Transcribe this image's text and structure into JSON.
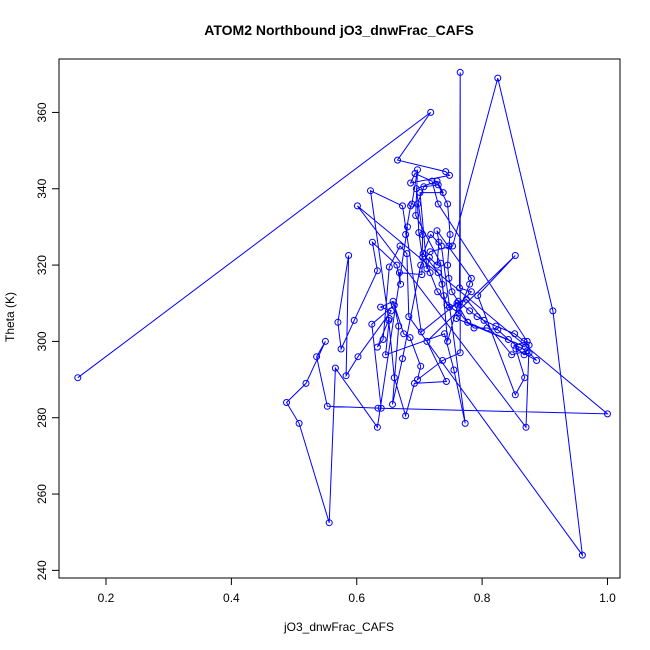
{
  "chart_data": {
    "type": "line",
    "title": "ATOM2 Northbound jO3_dnwFrac_CAFS",
    "xlabel": "jO3_dnwFrac_CAFS",
    "ylabel": "Theta (K)",
    "xlim": [
      0.125,
      1.02
    ],
    "ylim": [
      238,
      374
    ],
    "xticks": [
      0.2,
      0.4,
      0.6,
      0.8,
      1.0
    ],
    "xtick_labels": [
      "0.2",
      "0.4",
      "0.6",
      "0.8",
      "1.0"
    ],
    "yticks": [
      240,
      260,
      280,
      300,
      320,
      340,
      360
    ],
    "ytick_labels": [
      "240",
      "260",
      "280",
      "300",
      "320",
      "340",
      "360"
    ],
    "grid": false,
    "legend": "none",
    "colors": {
      "series": "#0000ff",
      "frame": "#000000"
    },
    "series": [
      {
        "marker": "open-circle",
        "points": [
          [
            0.155,
            290.5
          ],
          [
            0.718,
            360.0
          ],
          [
            0.665,
            347.5
          ],
          [
            0.742,
            344.5
          ],
          [
            0.748,
            343.5
          ],
          [
            0.686,
            341.5
          ],
          [
            0.693,
            344.0
          ],
          [
            0.72,
            342.0
          ],
          [
            0.73,
            336.0
          ],
          [
            0.872,
            300.0
          ],
          [
            0.851,
            299.0
          ],
          [
            0.867,
            296.5
          ],
          [
            0.875,
            297.0
          ],
          [
            0.887,
            295.0
          ],
          [
            0.854,
            298.0
          ],
          [
            0.868,
            290.5
          ],
          [
            0.853,
            286.0
          ],
          [
            0.793,
            312.0
          ],
          [
            0.853,
            322.5
          ],
          [
            0.712,
            300.0
          ],
          [
            0.743,
            289.5
          ],
          [
            0.692,
            289.0
          ],
          [
            0.678,
            280.5
          ],
          [
            0.66,
            290.5
          ],
          [
            0.651,
            305.5
          ],
          [
            0.622,
            339.5
          ],
          [
            0.673,
            335.5
          ],
          [
            0.703,
            302.5
          ],
          [
            0.76,
            310.0
          ],
          [
            0.777,
            305.0
          ],
          [
            0.869,
            298.5
          ],
          [
            0.759,
            306.0
          ],
          [
            0.78,
            315.0
          ],
          [
            0.783,
            316.5
          ],
          [
            0.728,
            329.0
          ],
          [
            0.731,
            326.0
          ],
          [
            0.728,
            320.0
          ],
          [
            0.716,
            322.0
          ],
          [
            0.712,
            319.0
          ],
          [
            0.701,
            339.0
          ],
          [
            0.738,
            339.0
          ],
          [
            0.728,
            342.0
          ],
          [
            0.695,
            340.0
          ],
          [
            0.705,
            328.0
          ],
          [
            0.704,
            317.5
          ],
          [
            0.668,
            318.0
          ],
          [
            0.67,
            315.0
          ],
          [
            0.664,
            320.0
          ],
          [
            0.625,
            326.0
          ],
          [
            0.633,
            318.5
          ],
          [
            0.596,
            305.5
          ],
          [
            0.575,
            298.0
          ],
          [
            0.57,
            305.0
          ],
          [
            0.587,
            322.5
          ],
          [
            0.583,
            291.0
          ],
          [
            0.602,
            296.0
          ],
          [
            0.655,
            308.0
          ],
          [
            0.638,
            309.0
          ],
          [
            0.658,
            310.5
          ],
          [
            0.675,
            302.0
          ],
          [
            0.685,
            301.0
          ],
          [
            0.702,
            293.5
          ],
          [
            0.697,
            290.0
          ],
          [
            0.737,
            295.0
          ],
          [
            0.765,
            297.0
          ],
          [
            0.765,
            370.5
          ],
          [
            0.764,
            314.0
          ],
          [
            0.783,
            313.0
          ],
          [
            0.761,
            309.5
          ],
          [
            0.745,
            300.0
          ],
          [
            0.734,
            320.5
          ],
          [
            0.694,
            333.0
          ],
          [
            0.697,
            345.0
          ],
          [
            0.688,
            336.0
          ],
          [
            0.686,
            335.5
          ],
          [
            0.678,
            328.0
          ],
          [
            0.681,
            330.0
          ],
          [
            0.633,
            277.5
          ],
          [
            0.566,
            293.0
          ],
          [
            0.556,
            252.5
          ],
          [
            0.508,
            278.5
          ],
          [
            0.488,
            284.0
          ],
          [
            0.519,
            289.0
          ],
          [
            0.55,
            300.0
          ],
          [
            0.536,
            296.0
          ],
          [
            0.553,
            283.0
          ],
          [
            0.639,
            282.5
          ],
          [
            0.624,
            304.5
          ],
          [
            0.66,
            309.5
          ],
          [
            0.667,
            304.0
          ],
          [
            0.657,
            283.5
          ],
          [
            0.673,
            295.5
          ],
          [
            0.702,
            320.0
          ],
          [
            0.717,
            323.5
          ],
          [
            0.753,
            325.0
          ],
          [
            0.825,
            369.0
          ],
          [
            0.913,
            308.0
          ],
          [
            0.96,
            244.0
          ],
          [
            0.683,
            306.5
          ],
          [
            0.68,
            323.0
          ],
          [
            0.669,
            325.0
          ],
          [
            0.652,
            319.5
          ],
          [
            0.642,
            300.5
          ],
          [
            0.633,
            298.5
          ],
          [
            0.652,
            306.0
          ],
          [
            0.646,
            296.5
          ],
          [
            0.74,
            302.0
          ],
          [
            0.755,
            292.5
          ],
          [
            0.773,
            278.5
          ],
          [
            0.735,
            325.0
          ],
          [
            0.718,
            328.0
          ],
          [
            0.706,
            323.0
          ],
          [
            0.73,
            318.0
          ],
          [
            0.736,
            315.0
          ],
          [
            0.739,
            312.0
          ],
          [
            0.744,
            309.5
          ],
          [
            0.763,
            307.5
          ],
          [
            0.777,
            305.0
          ],
          [
            0.787,
            303.5
          ],
          [
            0.808,
            303.5
          ],
          [
            0.825,
            303.0
          ],
          [
            0.842,
            300.5
          ],
          [
            0.859,
            298.5
          ],
          [
            0.872,
            297.5
          ],
          [
            0.847,
            296.5
          ],
          [
            0.775,
            311.0
          ],
          [
            0.748,
            309.0
          ],
          [
            0.729,
            313.0
          ],
          [
            0.717,
            318.0
          ],
          [
            0.705,
            322.0
          ],
          [
            0.699,
            328.5
          ],
          [
            0.697,
            336.0
          ],
          [
            0.707,
            340.5
          ],
          [
            0.73,
            341.0
          ],
          [
            0.745,
            336.0
          ],
          [
            0.749,
            328.0
          ],
          [
            0.747,
            325.0
          ],
          [
            0.745,
            320.0
          ],
          [
            0.747,
            316.5
          ],
          [
            0.752,
            313.0
          ],
          [
            0.762,
            310.5
          ],
          [
            0.78,
            308.0
          ],
          [
            0.792,
            306.5
          ],
          [
            0.803,
            305.5
          ],
          [
            0.822,
            304.0
          ],
          [
            0.852,
            302.0
          ],
          [
            0.867,
            300.0
          ],
          [
            0.875,
            299.0
          ],
          [
            0.87,
            277.5
          ],
          [
            0.601,
            335.5
          ],
          [
            1.0,
            281.0
          ],
          [
            0.634,
            282.5
          ]
        ]
      }
    ]
  }
}
